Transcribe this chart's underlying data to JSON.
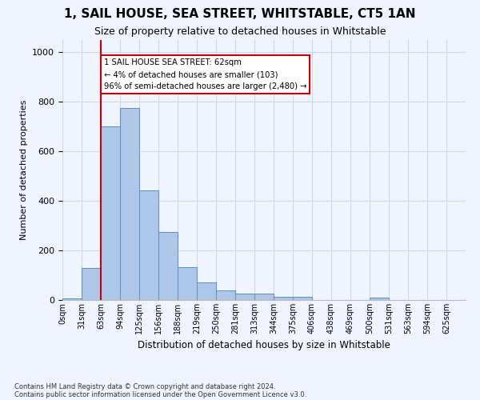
{
  "title": "1, SAIL HOUSE, SEA STREET, WHITSTABLE, CT5 1AN",
  "subtitle": "Size of property relative to detached houses in Whitstable",
  "xlabel": "Distribution of detached houses by size in Whitstable",
  "ylabel": "Number of detached properties",
  "bin_labels": [
    "0sqm",
    "31sqm",
    "63sqm",
    "94sqm",
    "125sqm",
    "156sqm",
    "188sqm",
    "219sqm",
    "250sqm",
    "281sqm",
    "313sqm",
    "344sqm",
    "375sqm",
    "406sqm",
    "438sqm",
    "469sqm",
    "500sqm",
    "531sqm",
    "563sqm",
    "594sqm",
    "625sqm"
  ],
  "bar_heights": [
    8,
    128,
    700,
    775,
    442,
    275,
    133,
    70,
    40,
    25,
    25,
    13,
    13,
    0,
    0,
    0,
    10,
    0,
    0,
    0,
    0
  ],
  "bar_color": "#aec6e8",
  "bar_edge_color": "#5a8fc2",
  "grid_color": "#d0d8e8",
  "highlight_line_color": "#cc0000",
  "annotation_text": "1 SAIL HOUSE SEA STREET: 62sqm\n← 4% of detached houses are smaller (103)\n96% of semi-detached houses are larger (2,480) →",
  "annotation_box_color": "#ffffff",
  "annotation_border_color": "#cc0000",
  "ylim": [
    0,
    1050
  ],
  "footnote1": "Contains HM Land Registry data © Crown copyright and database right 2024.",
  "footnote2": "Contains public sector information licensed under the Open Government Licence v3.0.",
  "background_color": "#f0f4ff"
}
